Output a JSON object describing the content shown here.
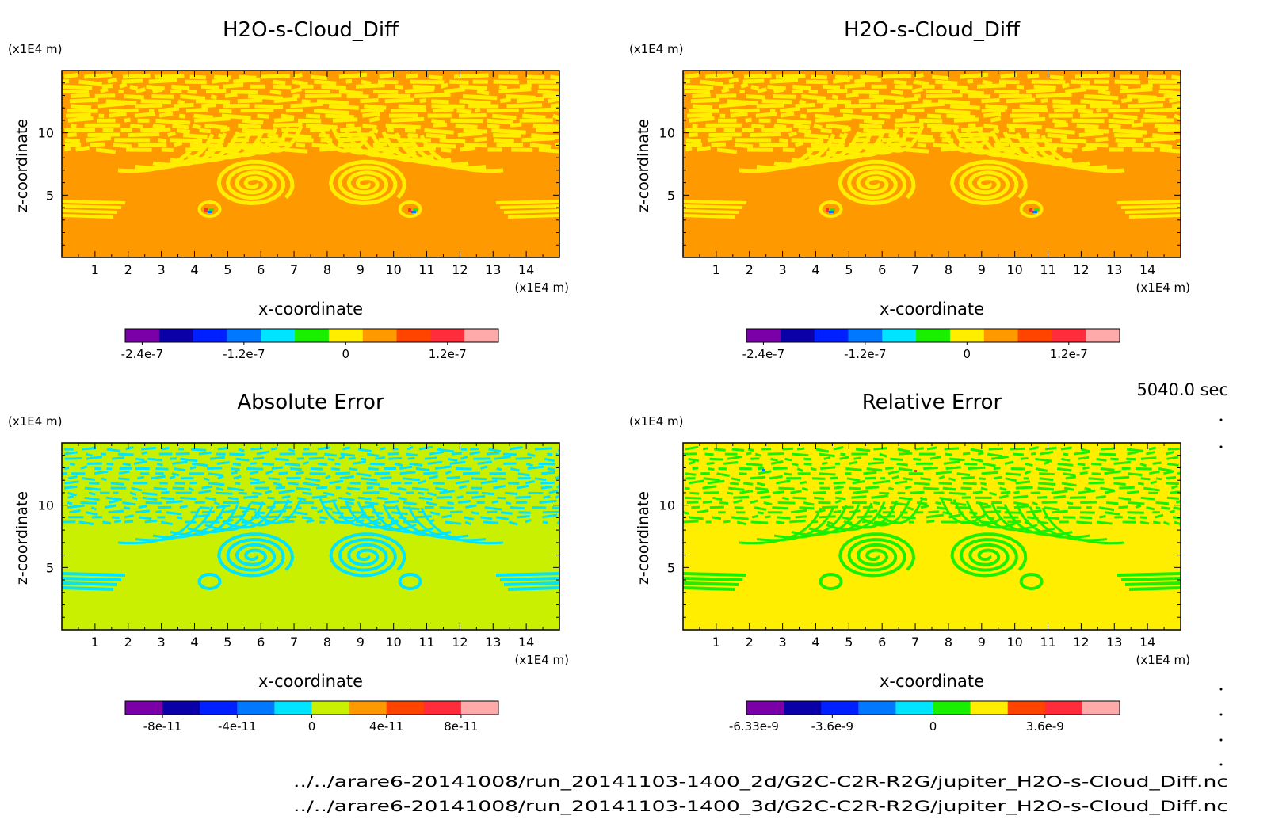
{
  "time_label": "5040.0 sec",
  "files": [
    "../../arare6-20141008/run_20141103-1400_2d/G2C-C2R-R2G/jupiter_H2O-s-Cloud_Diff.nc",
    "../../arare6-20141008/run_20141103-1400_3d/G2C-C2R-R2G/jupiter_H2O-s-Cloud_Diff.nc"
  ],
  "colors": {
    "shared_palette": [
      "#7b00a8",
      "#0b00a8",
      "#0020ff",
      "#0078ff",
      "#00e4ff",
      "#19f000",
      "#ffee00",
      "#ff9900",
      "#ff4400",
      "#ff2d3c",
      "#ffaaaa"
    ],
    "abs_palette": [
      "#7b00a8",
      "#0b00a8",
      "#0020ff",
      "#0078ff",
      "#00e4ff",
      "#c8f000",
      "#ff9900",
      "#ff4400",
      "#ff2d3c",
      "#ffaaaa"
    ]
  },
  "chart_data": [
    {
      "type": "heatmap",
      "id": "panel_tl",
      "title": "H2O-s-Cloud_Diff",
      "xlabel": "x-coordinate",
      "ylabel": "z-coordinate",
      "x_unit": "(x1E4 m)",
      "y_unit": "(x1E4 m)",
      "xlim": [
        0,
        15
      ],
      "ylim": [
        0,
        15
      ],
      "x_ticks": [
        "1",
        "2",
        "3",
        "4",
        "5",
        "6",
        "7",
        "8",
        "9",
        "10",
        "11",
        "12",
        "13",
        "14"
      ],
      "y_ticks": [
        "5",
        "10"
      ],
      "background_level": "0",
      "pattern_level": "0 to 6e-8",
      "colorbar": {
        "labels": [
          "-2.4e-7",
          "-1.2e-7",
          "0",
          "1.2e-7"
        ],
        "n_colors": 11
      }
    },
    {
      "type": "heatmap",
      "id": "panel_tr",
      "title": "H2O-s-Cloud_Diff",
      "xlabel": "x-coordinate",
      "ylabel": "z-coordinate",
      "x_unit": "(x1E4 m)",
      "y_unit": "(x1E4 m)",
      "xlim": [
        0,
        15
      ],
      "ylim": [
        0,
        15
      ],
      "x_ticks": [
        "1",
        "2",
        "3",
        "4",
        "5",
        "6",
        "7",
        "8",
        "9",
        "10",
        "11",
        "12",
        "13",
        "14"
      ],
      "y_ticks": [
        "5",
        "10"
      ],
      "background_level": "0",
      "pattern_level": "0 to 6e-8",
      "colorbar": {
        "labels": [
          "-2.4e-7",
          "-1.2e-7",
          "0",
          "1.2e-7"
        ],
        "n_colors": 11
      }
    },
    {
      "type": "heatmap",
      "id": "panel_bl",
      "title": "Absolute Error",
      "xlabel": "x-coordinate",
      "ylabel": "z-coordinate",
      "x_unit": "(x1E4 m)",
      "y_unit": "(x1E4 m)",
      "xlim": [
        0,
        15
      ],
      "ylim": [
        0,
        15
      ],
      "x_ticks": [
        "1",
        "2",
        "3",
        "4",
        "5",
        "6",
        "7",
        "8",
        "9",
        "10",
        "11",
        "12",
        "13",
        "14"
      ],
      "y_ticks": [
        "5",
        "10"
      ],
      "background_level": "0",
      "pattern_level": "-2e-11 to 0",
      "colorbar": {
        "labels": [
          "-8e-11",
          "-4e-11",
          "0",
          "4e-11",
          "8e-11"
        ],
        "n_colors": 10
      }
    },
    {
      "type": "heatmap",
      "id": "panel_br",
      "title": "Relative Error",
      "xlabel": "x-coordinate",
      "ylabel": "z-coordinate",
      "x_unit": "(x1E4 m)",
      "y_unit": "(x1E4 m)",
      "xlim": [
        0,
        15
      ],
      "ylim": [
        0,
        15
      ],
      "x_ticks": [
        "1",
        "2",
        "3",
        "4",
        "5",
        "6",
        "7",
        "8",
        "9",
        "10",
        "11",
        "12",
        "13",
        "14"
      ],
      "y_ticks": [
        "5",
        "10"
      ],
      "background_level": "0",
      "pattern_level": "-1.2e-9 to 0",
      "colorbar": {
        "labels": [
          "-6.33e-9",
          "-3.6e-9",
          "0",
          "3.6e-9"
        ],
        "n_colors": 10
      }
    }
  ]
}
